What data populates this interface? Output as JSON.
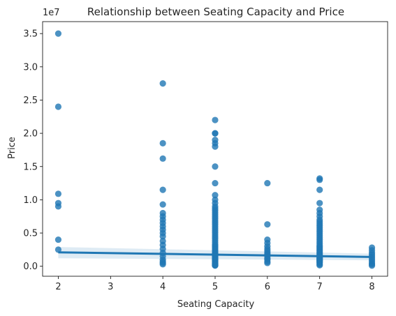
{
  "chart_data": {
    "type": "scatter",
    "title": "Relationship between Seating Capacity and Price",
    "xlabel": "Seating Capacity",
    "ylabel": "Price",
    "y_offset_label": "1e7",
    "xlim": [
      1.7,
      8.3
    ],
    "ylim": [
      -1500000,
      36800000
    ],
    "x_ticks": [
      2,
      3,
      4,
      5,
      6,
      7,
      8
    ],
    "y_ticks": [
      0,
      5000000,
      10000000,
      15000000,
      20000000,
      25000000,
      30000000,
      35000000
    ],
    "y_tick_labels": [
      "0.0",
      "0.5",
      "1.0",
      "1.5",
      "2.0",
      "2.5",
      "3.0",
      "3.5"
    ],
    "grid": false,
    "legend": "none",
    "point_color": "#1f77b4",
    "series": [
      {
        "x": [
          2,
          2,
          2,
          2,
          2,
          2,
          2
        ],
        "y": [
          35000000,
          24000000,
          10900000,
          9500000,
          9000000,
          4000000,
          2500000
        ]
      },
      {
        "x": [
          4,
          4,
          4,
          4,
          4,
          4,
          4,
          4,
          4,
          4,
          4,
          4,
          4,
          4,
          4,
          4,
          4,
          4,
          4,
          4,
          4,
          4
        ],
        "y": [
          27500000,
          18500000,
          16200000,
          11500000,
          9300000,
          8000000,
          7500000,
          7000000,
          6500000,
          6000000,
          5500000,
          5000000,
          4500000,
          3800000,
          3200000,
          2600000,
          2000000,
          1500000,
          1000000,
          700000,
          500000,
          300000
        ]
      },
      {
        "x": [
          5,
          5,
          5,
          5,
          5,
          5,
          5,
          5,
          5,
          5,
          5,
          5,
          5,
          5,
          5,
          5,
          5,
          5,
          5,
          5,
          5,
          5,
          5,
          5,
          5,
          5,
          5,
          5,
          5,
          5,
          5,
          5,
          5,
          5,
          5,
          5,
          5,
          5,
          5,
          5,
          5,
          5,
          5,
          5,
          5,
          5,
          5,
          5,
          5,
          5,
          5,
          5,
          5,
          5,
          5,
          5,
          5,
          5,
          5,
          5
        ],
        "y": [
          22000000,
          20000000,
          20000000,
          19000000,
          18500000,
          18000000,
          15000000,
          12500000,
          10700000,
          10000000,
          9500000,
          9000000,
          8700000,
          8400000,
          8100000,
          7800000,
          7500000,
          7200000,
          6900000,
          6600000,
          6300000,
          6000000,
          5700000,
          5400000,
          5100000,
          4800000,
          4500000,
          4200000,
          3900000,
          3600000,
          3300000,
          3100000,
          2900000,
          2700000,
          2500000,
          2300000,
          2100000,
          1900000,
          1800000,
          1700000,
          1600000,
          1500000,
          1400000,
          1300000,
          1200000,
          1100000,
          1000000,
          900000,
          800000,
          700000,
          600000,
          500000,
          450000,
          400000,
          350000,
          300000,
          250000,
          200000,
          150000,
          100000
        ]
      },
      {
        "x": [
          6,
          6,
          6,
          6,
          6,
          6,
          6,
          6,
          6,
          6,
          6,
          6,
          6,
          6
        ],
        "y": [
          12500000,
          6300000,
          4000000,
          3500000,
          3000000,
          2600000,
          2300000,
          2000000,
          1800000,
          1500000,
          1200000,
          1000000,
          700000,
          500000
        ]
      },
      {
        "x": [
          7,
          7,
          7,
          7,
          7,
          7,
          7,
          7,
          7,
          7,
          7,
          7,
          7,
          7,
          7,
          7,
          7,
          7,
          7,
          7,
          7,
          7,
          7,
          7,
          7,
          7,
          7,
          7,
          7,
          7,
          7,
          7,
          7,
          7,
          7,
          7,
          7,
          7,
          7,
          7,
          7,
          7
        ],
        "y": [
          13200000,
          13000000,
          11500000,
          9500000,
          8500000,
          8000000,
          7500000,
          7000000,
          6700000,
          6400000,
          6100000,
          5800000,
          5500000,
          5200000,
          4900000,
          4600000,
          4300000,
          4000000,
          3700000,
          3400000,
          3100000,
          2900000,
          2700000,
          2500000,
          2300000,
          2100000,
          1900000,
          1700000,
          1600000,
          1500000,
          1400000,
          1300000,
          1200000,
          1100000,
          1000000,
          900000,
          800000,
          700000,
          600000,
          500000,
          300000,
          150000
        ]
      },
      {
        "x": [
          8,
          8,
          8,
          8,
          8,
          8,
          8,
          8,
          8,
          8
        ],
        "y": [
          2800000,
          2400000,
          2000000,
          1700000,
          1400000,
          1100000,
          800000,
          500000,
          300000,
          100000
        ]
      }
    ],
    "regression": {
      "x": [
        2,
        8
      ],
      "y": [
        2100000,
        1400000
      ],
      "ci_upper": [
        2900000,
        1900000
      ],
      "ci_lower": [
        1200000,
        900000
      ]
    }
  }
}
